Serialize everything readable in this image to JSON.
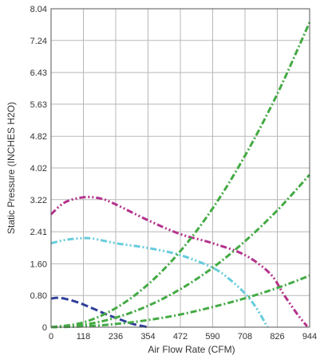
{
  "chart_data": {
    "type": "line",
    "title": "",
    "xlabel": "Air Flow Rate (CFM)",
    "ylabel": "Static Pressure (INCHES H2O)",
    "xlim": [
      0,
      944
    ],
    "ylim": [
      0,
      8.04
    ],
    "x_ticks": [
      "0",
      "118",
      "236",
      "354",
      "472",
      "590",
      "708",
      "826",
      "944"
    ],
    "y_ticks": [
      "0",
      "0.80",
      "1.60",
      "2.41",
      "3.22",
      "4.02",
      "4.82",
      "5.63",
      "6.43",
      "7.24",
      "8.04"
    ],
    "grid": true,
    "legend": "none",
    "series": [
      {
        "color": "#2f3f9a",
        "dash": "dash",
        "x": [
          0,
          20,
          50,
          100,
          150,
          200,
          250,
          300,
          354
        ],
        "y": [
          0.72,
          0.74,
          0.72,
          0.62,
          0.48,
          0.33,
          0.2,
          0.08,
          0.0
        ]
      },
      {
        "color": "#66ccdd",
        "dash": "dash-dot-dot",
        "x": [
          0,
          50,
          100,
          150,
          236,
          354,
          472,
          590,
          650,
          708,
          750,
          790
        ],
        "y": [
          2.12,
          2.2,
          2.24,
          2.24,
          2.12,
          2.0,
          1.82,
          1.5,
          1.22,
          0.85,
          0.48,
          0.0
        ]
      },
      {
        "color": "#b4328c",
        "dash": "dash-dot-dot",
        "x": [
          0,
          50,
          118,
          180,
          236,
          354,
          472,
          590,
          708,
          800,
          850,
          900,
          935
        ],
        "y": [
          2.85,
          3.15,
          3.28,
          3.25,
          3.1,
          2.7,
          2.35,
          2.12,
          1.82,
          1.35,
          0.82,
          0.32,
          0.02
        ]
      },
      {
        "color": "#44aa44",
        "dash": "dash-dot",
        "x": [
          0,
          118,
          236,
          354,
          472,
          590,
          708,
          826,
          944
        ],
        "y": [
          0.0,
          0.12,
          0.48,
          1.08,
          1.92,
          3.0,
          4.33,
          5.89,
          7.7
        ]
      },
      {
        "color": "#44aa44",
        "dash": "dash-dot",
        "x": [
          0,
          118,
          236,
          354,
          472,
          590,
          708,
          826,
          944
        ],
        "y": [
          0.0,
          0.06,
          0.24,
          0.54,
          0.96,
          1.5,
          2.17,
          2.95,
          3.85
        ]
      },
      {
        "color": "#44aa44",
        "dash": "dash-dot",
        "x": [
          0,
          118,
          236,
          354,
          472,
          590,
          708,
          826,
          944
        ],
        "y": [
          0.0,
          0.02,
          0.08,
          0.18,
          0.32,
          0.51,
          0.73,
          0.99,
          1.3
        ]
      }
    ]
  }
}
